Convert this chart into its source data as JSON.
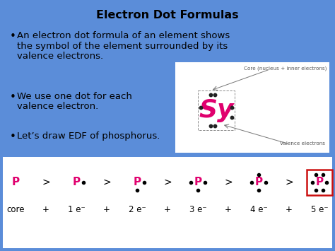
{
  "title": "Electron Dot Formulas",
  "bg_color": "#5b8dd9",
  "bullet1_line1": "An electron dot formula of an element shows",
  "bullet1_line2": "the symbol of the element surrounded by its",
  "bullet1_line3": "valence electrons.",
  "bullet2_line1": "We use one dot for each",
  "bullet2_line2": "valence electron.",
  "bullet3": "Let’s draw EDF of phosphorus.",
  "box_bg": "#ffffff",
  "pink": "#e0006e",
  "black": "#000000",
  "dark_gray": "#555555",
  "fig_w": 4.74,
  "fig_h": 3.55,
  "dpi": 100
}
